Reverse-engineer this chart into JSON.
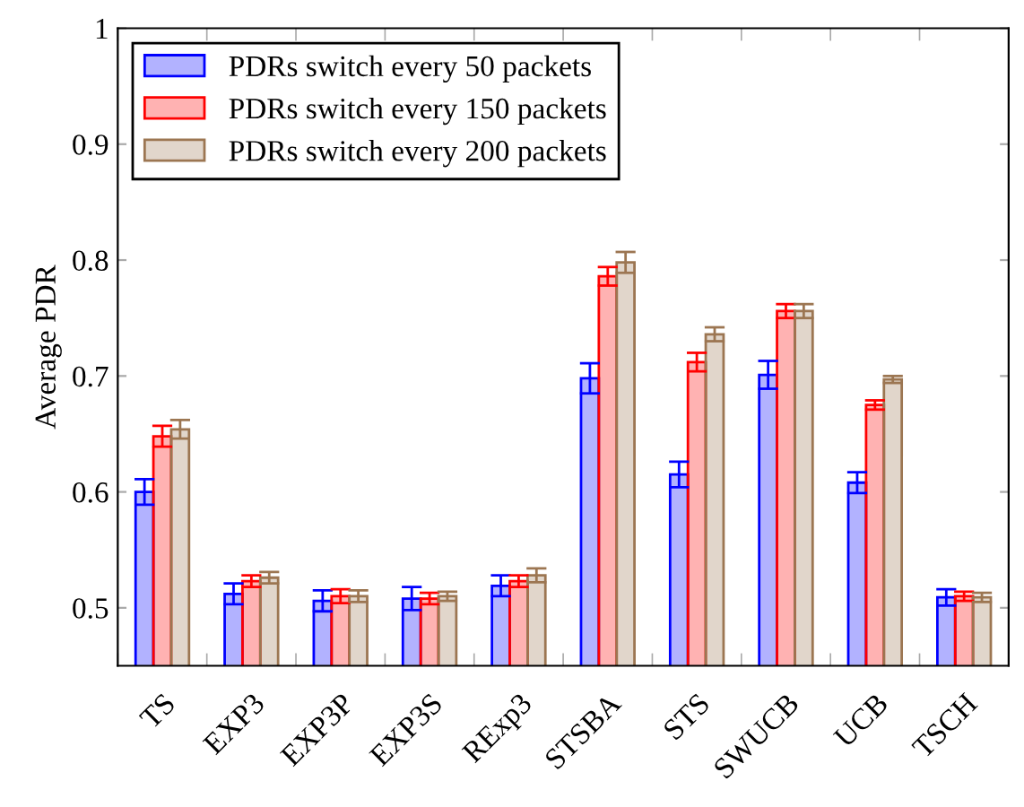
{
  "chart_data": {
    "type": "bar",
    "ylabel": "Average PDR",
    "categories": [
      "TS",
      "EXP3",
      "EXP3P",
      "EXP3S",
      "RExp3",
      "STSBA",
      "STS",
      "SWUCB",
      "UCB",
      "TSCH"
    ],
    "series": [
      {
        "name": "PDRs switch every 50 packets",
        "color": "#0000ff",
        "values": [
          0.6,
          0.512,
          0.506,
          0.508,
          0.519,
          0.698,
          0.615,
          0.701,
          0.608,
          0.509
        ],
        "errors": [
          0.011,
          0.009,
          0.009,
          0.01,
          0.009,
          0.013,
          0.011,
          0.012,
          0.009,
          0.007
        ]
      },
      {
        "name": "PDRs switch every 150 packets",
        "color": "#ff0000",
        "values": [
          0.648,
          0.523,
          0.51,
          0.508,
          0.523,
          0.786,
          0.712,
          0.756,
          0.675,
          0.51
        ],
        "errors": [
          0.009,
          0.005,
          0.006,
          0.005,
          0.005,
          0.008,
          0.008,
          0.006,
          0.004,
          0.004
        ]
      },
      {
        "name": "PDRs switch every 200 packets",
        "color": "#9c7652",
        "values": [
          0.654,
          0.526,
          0.51,
          0.51,
          0.528,
          0.798,
          0.736,
          0.756,
          0.697,
          0.509
        ],
        "errors": [
          0.008,
          0.005,
          0.005,
          0.004,
          0.006,
          0.009,
          0.006,
          0.006,
          0.003,
          0.004
        ]
      }
    ],
    "ylim": [
      0.45,
      1
    ],
    "yticks": [
      0.5,
      0.6,
      0.7,
      0.8,
      0.9,
      1
    ],
    "grid": false,
    "legend": "top left"
  }
}
